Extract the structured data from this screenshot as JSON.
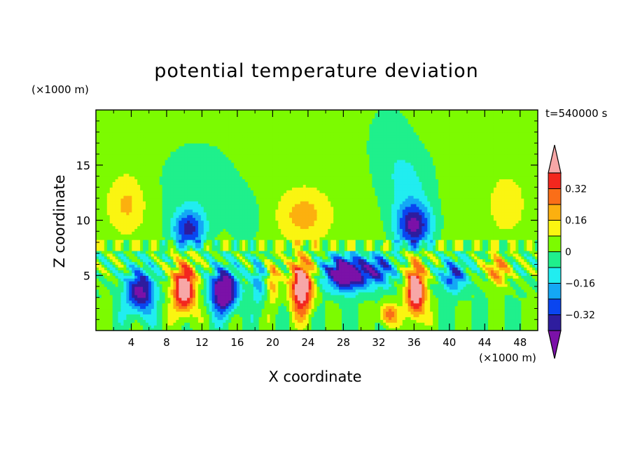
{
  "chart_data": {
    "type": "heatmap",
    "title": "potential temperature deviation",
    "xlabel": "X coordinate",
    "ylabel": "Z coordinate",
    "x_unit": "(×1000 m)",
    "y_unit": "(×1000 m)",
    "time_label": "t=540000 s",
    "xlim": [
      0,
      50
    ],
    "ylim": [
      0,
      20
    ],
    "x_ticks": [
      "4",
      "8",
      "12",
      "16",
      "20",
      "24",
      "28",
      "32",
      "36",
      "40",
      "44",
      "48"
    ],
    "y_ticks": [
      "5",
      "10",
      "15"
    ],
    "colorbar": {
      "levels": [
        -0.4,
        -0.32,
        -0.24,
        -0.16,
        -0.08,
        0,
        0.08,
        0.16,
        0.24,
        0.32,
        0.4
      ],
      "tick_labels": [
        "0.32",
        "0.16",
        "0",
        "−0.16",
        "−0.32"
      ],
      "colors": [
        "#7B11A8",
        "#2E1D9E",
        "#0A45F0",
        "#14A8F5",
        "#21EDF0",
        "#1FF08C",
        "#7CFB00",
        "#FAF511",
        "#FCB00F",
        "#FA6E18",
        "#F3271E",
        "#F7A7A7"
      ]
    },
    "features": [
      {
        "x": 4,
        "z": 11.5,
        "value": 0.12
      },
      {
        "x": 10.5,
        "z": 10.0,
        "value": -0.3
      },
      {
        "x": 11.5,
        "z": 13.5,
        "value": -0.06
      },
      {
        "x": 17.5,
        "z": 9.0,
        "value": -0.02
      },
      {
        "x": 23.5,
        "z": 10.5,
        "value": 0.15
      },
      {
        "x": 35.5,
        "z": 13.0,
        "value": -0.06
      },
      {
        "x": 36.0,
        "z": 10.0,
        "value": -0.32
      },
      {
        "x": 46.0,
        "z": 11.0,
        "value": 0.12
      },
      {
        "x": 10.0,
        "z": 3.5,
        "value": 0.4
      },
      {
        "x": 14.5,
        "z": 3.5,
        "value": -0.45
      },
      {
        "x": 23.5,
        "z": 4.0,
        "value": 0.4
      },
      {
        "x": 28.0,
        "z": 5.0,
        "value": -0.45
      },
      {
        "x": 36.0,
        "z": 3.5,
        "value": 0.4
      },
      {
        "x": 4.5,
        "z": 3.0,
        "value": -0.35
      }
    ]
  }
}
